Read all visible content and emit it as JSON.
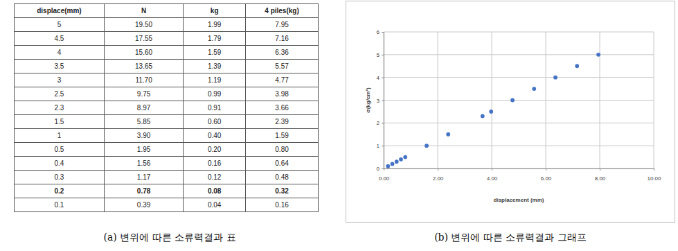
{
  "chart_data": {
    "type": "scatter",
    "x_label": "displacement (mm)",
    "y_label": "σ(kg/cm²)",
    "x": [
      7.95,
      7.16,
      6.36,
      5.57,
      4.77,
      3.98,
      3.66,
      2.39,
      1.59,
      0.8,
      0.64,
      0.48,
      0.32,
      0.16
    ],
    "values": [
      5,
      4.5,
      4,
      3.5,
      3,
      2.5,
      2.3,
      1.5,
      1,
      0.5,
      0.4,
      0.3,
      0.2,
      0.1
    ],
    "color": "#4472c4",
    "marker": "circle",
    "xlim": [
      0,
      10
    ],
    "xticks": [
      {
        "value": 0,
        "label": "0.00"
      },
      {
        "value": 2,
        "label": "2.00"
      },
      {
        "value": 4,
        "label": "4.00"
      },
      {
        "value": 6,
        "label": "6.00"
      },
      {
        "value": 8,
        "label": "8.00"
      },
      {
        "value": 10,
        "label": "10.00"
      }
    ],
    "ylim": [
      0,
      6
    ],
    "yticks": [
      0,
      1,
      2,
      3,
      4,
      5,
      6
    ],
    "grid": true
  },
  "table": {
    "header": [
      "displace(mm)",
      "N",
      "kg",
      "4 piles(kg)"
    ],
    "rows": [
      [
        "5",
        "19.50",
        "1.99",
        "7.95"
      ],
      [
        "4.5",
        "17.55",
        "1.79",
        "7.16"
      ],
      [
        "4",
        "15.60",
        "1.59",
        "6.36"
      ],
      [
        "3.5",
        "13.65",
        "1.39",
        "5.57"
      ],
      [
        "3",
        "11.70",
        "1.19",
        "4.77"
      ],
      [
        "2.5",
        "9.75",
        "0.99",
        "3.98"
      ],
      [
        "2.3",
        "8.97",
        "0.91",
        "3.66"
      ],
      [
        "1.5",
        "5.85",
        "0.60",
        "2.39"
      ],
      [
        "1",
        "3.90",
        "0.40",
        "1.59"
      ],
      [
        "0.5",
        "1.95",
        "0.20",
        "0.80"
      ],
      [
        "0.4",
        "1.56",
        "0.16",
        "0.64"
      ],
      [
        "0.3",
        "1.17",
        "0.12",
        "0.48"
      ],
      [
        "0.2",
        "0.78",
        "0.08",
        "0.32"
      ],
      [
        "0.1",
        "0.39",
        "0.04",
        "0.16"
      ]
    ],
    "bold_row": 12
  },
  "captions": [
    "(a) 변위에 따른 소류력결과 표",
    "(b) 변위에 따른 소류력결과 그래프"
  ]
}
